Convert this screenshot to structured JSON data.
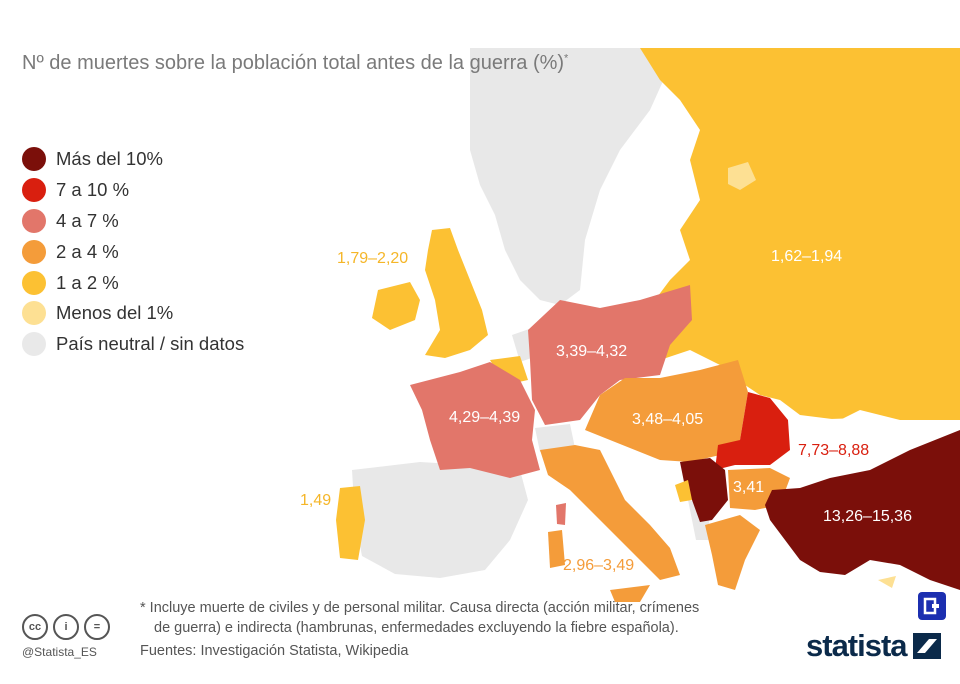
{
  "title": {
    "text": "Nº de muertes sobre la población total antes de la guerra (%)",
    "asterisk": "*"
  },
  "legend": [
    {
      "label": "Más del 10%",
      "color": "#7b0f0a"
    },
    {
      "label": "7 a 10 %",
      "color": "#d91f0f"
    },
    {
      "label": "4 a 7 %",
      "color": "#e2766a"
    },
    {
      "label": "2 a 4 %",
      "color": "#f49c3a"
    },
    {
      "label": "1 a 2 %",
      "color": "#fcc133"
    },
    {
      "label": "Menos del 1%",
      "color": "#fde093"
    },
    {
      "label": "País neutral / sin datos",
      "color": "#e9e9e9"
    }
  ],
  "map_labels": {
    "uk": {
      "text": "1,79–2,20",
      "color": "#f5b628"
    },
    "russia": {
      "text": "1,62–1,94",
      "color": "#ffffff"
    },
    "germany": {
      "text": "3,39–4,32",
      "color": "#ffffff"
    },
    "france": {
      "text": "4,29–4,39",
      "color": "#ffffff"
    },
    "austria_hungary": {
      "text": "3,48–4,05",
      "color": "#ffffff"
    },
    "romania": {
      "text": "7,73–8,88",
      "color": "#d91f0f"
    },
    "bulgaria": {
      "text": "3,41",
      "color": "#ffffff"
    },
    "ottoman": {
      "text": "13,26–15,36",
      "color": "#ffffff"
    },
    "portugal": {
      "text": "1,49",
      "color": "#f5b628"
    },
    "italy": {
      "text": "2,96–3,49",
      "color": "#f49c3a"
    }
  },
  "footnote": {
    "line1": "* Incluye muerte de civiles y de personal militar. Causa directa (acción militar, crímenes",
    "line2": "de guerra) e indirecta (hambrunas, enfermedades excluyendo la fiebre española)."
  },
  "sources": "Fuentes: Investigación Statista, Wikipedia",
  "credit": {
    "handle": "@Statista_ES",
    "cc": "cc",
    "by": "i",
    "nd": "="
  },
  "brand": "statista"
}
